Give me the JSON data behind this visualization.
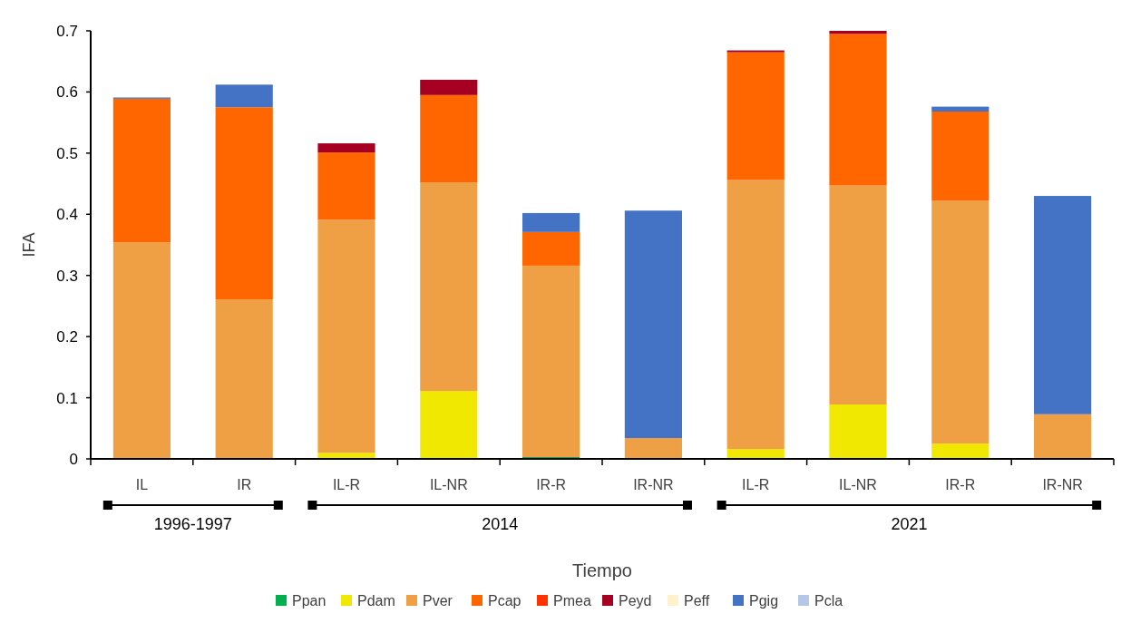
{
  "chart_data": {
    "type": "bar",
    "stacked": true,
    "xlabel": "Tiempo",
    "ylabel": "IFA",
    "categories": [
      "IL",
      "IR",
      "IL-R",
      "IL-NR",
      "IR-R",
      "IR-NR",
      "IL-R",
      "IL-NR",
      "IR-R",
      "IR-NR"
    ],
    "series": [
      {
        "name": "Ppan",
        "color": "#00b050",
        "values": [
          0,
          0,
          0,
          0,
          0.003,
          0,
          0,
          0,
          0,
          0
        ]
      },
      {
        "name": "Pdam",
        "color": "#f0e800",
        "values": [
          0,
          0,
          0.01,
          0.111,
          0,
          0,
          0.016,
          0.089,
          0.025,
          0
        ]
      },
      {
        "name": "Pver",
        "color": "#f0a044",
        "values": [
          0.354,
          0.261,
          0.381,
          0.341,
          0.313,
          0.034,
          0.44,
          0.358,
          0.397,
          0.073
        ]
      },
      {
        "name": "Pcap",
        "color": "#ff6600",
        "values": [
          0.235,
          0.314,
          0.11,
          0.143,
          0.055,
          0,
          0.209,
          0.248,
          0.146,
          0
        ]
      },
      {
        "name": "Pmea",
        "color": "#ff3300",
        "values": [
          0,
          0,
          0,
          0,
          0,
          0,
          0,
          0,
          0,
          0
        ]
      },
      {
        "name": "Peyd",
        "color": "#a50021",
        "values": [
          0,
          0,
          0.015,
          0.025,
          0,
          0,
          0.003,
          0.005,
          0,
          0
        ]
      },
      {
        "name": "Peff",
        "color": "#fff2cc",
        "values": [
          0,
          0,
          0,
          0,
          0,
          0,
          0,
          0,
          0,
          0
        ]
      },
      {
        "name": "Pgig",
        "color": "#4472c4",
        "values": [
          0.002,
          0.037,
          0,
          0,
          0.031,
          0.372,
          0,
          0,
          0.008,
          0.357
        ]
      },
      {
        "name": "Pcla",
        "color": "#b4c7e7",
        "values": [
          0,
          0,
          0,
          0,
          0,
          0,
          0,
          0,
          0,
          0
        ]
      }
    ],
    "ylim": [
      0,
      0.7
    ],
    "yticks": [
      0,
      0.1,
      0.2,
      0.3,
      0.4,
      0.5,
      0.6,
      0.7
    ],
    "grid": false,
    "legend": "bottom",
    "annotations": [
      "1996-1997",
      "2014",
      "2021"
    ]
  }
}
